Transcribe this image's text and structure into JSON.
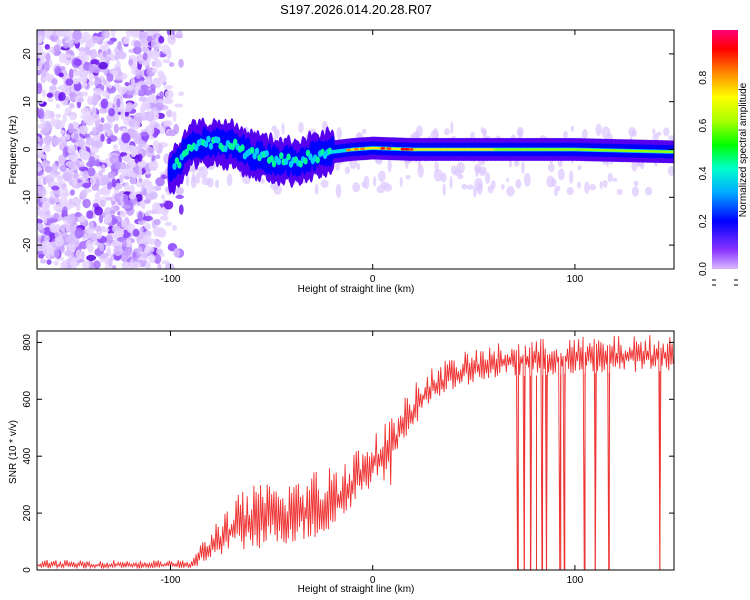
{
  "title": "S197.2026.014.20.28.R07",
  "colors": {
    "snr_line": "#ee3333",
    "axis": "#000000",
    "background": "#ffffff"
  },
  "chart_data": [
    {
      "type": "heatmap",
      "name": "spectrogram",
      "xlabel": "Height of straight line (km)",
      "ylabel": "Frequency (Hz)",
      "xlim": [
        -166,
        149
      ],
      "ylim": [
        -25,
        25
      ],
      "xticks": [
        -100,
        0,
        100
      ],
      "yticks": [
        -20,
        -10,
        0,
        10,
        20
      ],
      "description_of_signal": {
        "noise_region_x": [
          -166,
          -94
        ],
        "signal_onset_x": -100,
        "signal_center_freq": 0,
        "signal_width_hz": 2.5
      },
      "ridge": [
        {
          "x": -100,
          "f": -5
        },
        {
          "x": -90,
          "f": 1
        },
        {
          "x": -80,
          "f": 1.5
        },
        {
          "x": -70,
          "f": 1
        },
        {
          "x": -60,
          "f": -1
        },
        {
          "x": -50,
          "f": -2
        },
        {
          "x": -40,
          "f": -2.5
        },
        {
          "x": -30,
          "f": -1.5
        },
        {
          "x": -20,
          "f": -0.5
        },
        {
          "x": -10,
          "f": 0
        },
        {
          "x": 0,
          "f": 0.3
        },
        {
          "x": 20,
          "f": 0
        },
        {
          "x": 60,
          "f": 0
        },
        {
          "x": 100,
          "f": 0
        },
        {
          "x": 149,
          "f": -0.5
        }
      ],
      "colorbar": {
        "label": "Normalized spectral amplitude",
        "range": [
          0.0,
          1.0
        ],
        "ticks": [
          "0.0",
          "0.2",
          "0.4",
          "0.6",
          "0.8"
        ],
        "tick_values": [
          0.0,
          0.2,
          0.4,
          0.6,
          0.8
        ],
        "colors": [
          "#cc99ff",
          "#5500ee",
          "#0000ff",
          "#00ccff",
          "#00ff66",
          "#99ff00",
          "#ffff00",
          "#ff8800",
          "#ff0000",
          "#ff0077"
        ]
      }
    },
    {
      "type": "line",
      "name": "snr",
      "xlabel": "Height of straight line (km)",
      "ylabel": "SNR (10 * v/v)",
      "xlim": [
        -166,
        149
      ],
      "ylim": [
        0,
        840
      ],
      "xticks": [
        -100,
        0,
        100
      ],
      "yticks": [
        0,
        200,
        400,
        600,
        800
      ],
      "series": [
        {
          "name": "SNR",
          "envelope": [
            {
              "x": -166,
              "low": 5,
              "high": 35
            },
            {
              "x": -90,
              "low": 5,
              "high": 35
            },
            {
              "x": -80,
              "low": 30,
              "high": 150
            },
            {
              "x": -70,
              "low": 60,
              "high": 250
            },
            {
              "x": -60,
              "low": 70,
              "high": 300
            },
            {
              "x": -45,
              "low": 90,
              "high": 320
            },
            {
              "x": -30,
              "low": 100,
              "high": 350
            },
            {
              "x": -20,
              "low": 130,
              "high": 380
            },
            {
              "x": -10,
              "low": 220,
              "high": 430
            },
            {
              "x": 0,
              "low": 300,
              "high": 470
            },
            {
              "x": 10,
              "low": 380,
              "high": 550
            },
            {
              "x": 20,
              "low": 500,
              "high": 650
            },
            {
              "x": 30,
              "low": 600,
              "high": 720
            },
            {
              "x": 50,
              "low": 660,
              "high": 780
            },
            {
              "x": 70,
              "low": 680,
              "high": 810
            },
            {
              "x": 100,
              "low": 690,
              "high": 820
            },
            {
              "x": 149,
              "low": 700,
              "high": 830
            }
          ],
          "dropouts_x": [
            72,
            75,
            78,
            81,
            84,
            86,
            93,
            95,
            105,
            110,
            117,
            142
          ],
          "dropout_value": 0
        }
      ]
    }
  ]
}
